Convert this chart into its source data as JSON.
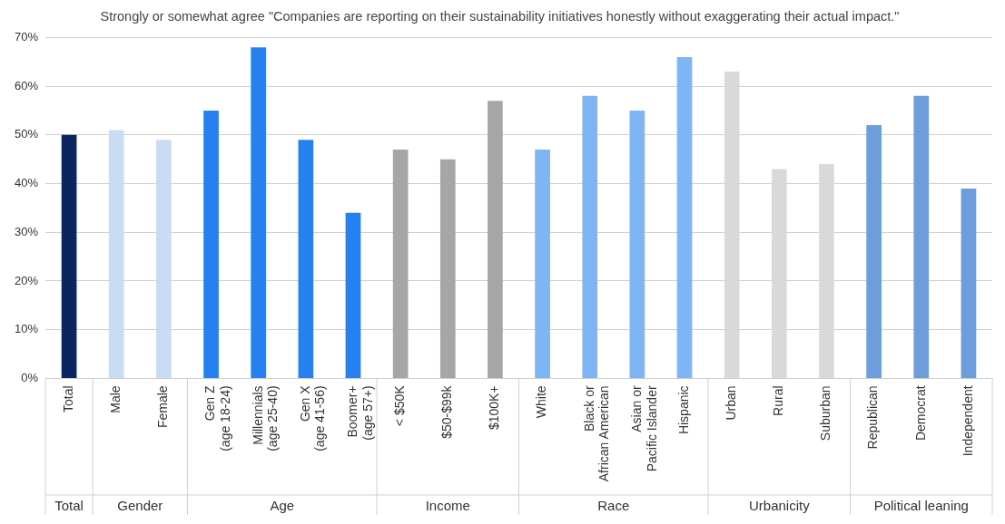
{
  "chart_data": {
    "type": "bar",
    "title": "Strongly or somewhat agree \"Companies are reporting on their sustainability initiatives honestly without exaggerating their actual impact.\"",
    "categories": [
      "Total",
      "Male",
      "Female",
      "Gen Z\n(age 18-24)",
      "Millennials\n(age 25-40)",
      "Gen X\n(age 41-56)",
      "Boomer+\n(age 57+)",
      "< $50K",
      "$50-$99k",
      "$100K+",
      "White",
      "Black or\nAfrican American",
      "Asian or\nPacific Islander",
      "Hispanic",
      "Urban",
      "Rural",
      "Suburban",
      "Republican",
      "Democrat",
      "Independent"
    ],
    "values": [
      50,
      51,
      49,
      55,
      68,
      49,
      34,
      47,
      45,
      57,
      47,
      58,
      55,
      66,
      63,
      43,
      44,
      52,
      58,
      39
    ],
    "colors": [
      "#0b2560",
      "#c9dcf3",
      "#c9dcf3",
      "#2680f0",
      "#2680f0",
      "#2680f0",
      "#2680f0",
      "#a6a6a6",
      "#a6a6a6",
      "#a6a6a6",
      "#7db5f5",
      "#7db5f5",
      "#7db5f5",
      "#7db5f5",
      "#d9d9d9",
      "#d9d9d9",
      "#d9d9d9",
      "#6d9ddb",
      "#6d9ddb",
      "#6d9ddb"
    ],
    "annotations": [
      "Total",
      "Gender",
      "Age",
      "Income",
      "Race",
      "Urbanicity",
      "Political leaning"
    ],
    "ylim": [
      0,
      70
    ],
    "yticks": [
      {
        "value": 0,
        "label": "0%"
      },
      {
        "value": 10,
        "label": "10%"
      },
      {
        "value": 20,
        "label": "20%"
      },
      {
        "value": 30,
        "label": "30%"
      },
      {
        "value": 40,
        "label": "40%"
      },
      {
        "value": 50,
        "label": "50%"
      },
      {
        "value": 60,
        "label": "60%"
      },
      {
        "value": 70,
        "label": "70%"
      }
    ],
    "grid": "y"
  }
}
